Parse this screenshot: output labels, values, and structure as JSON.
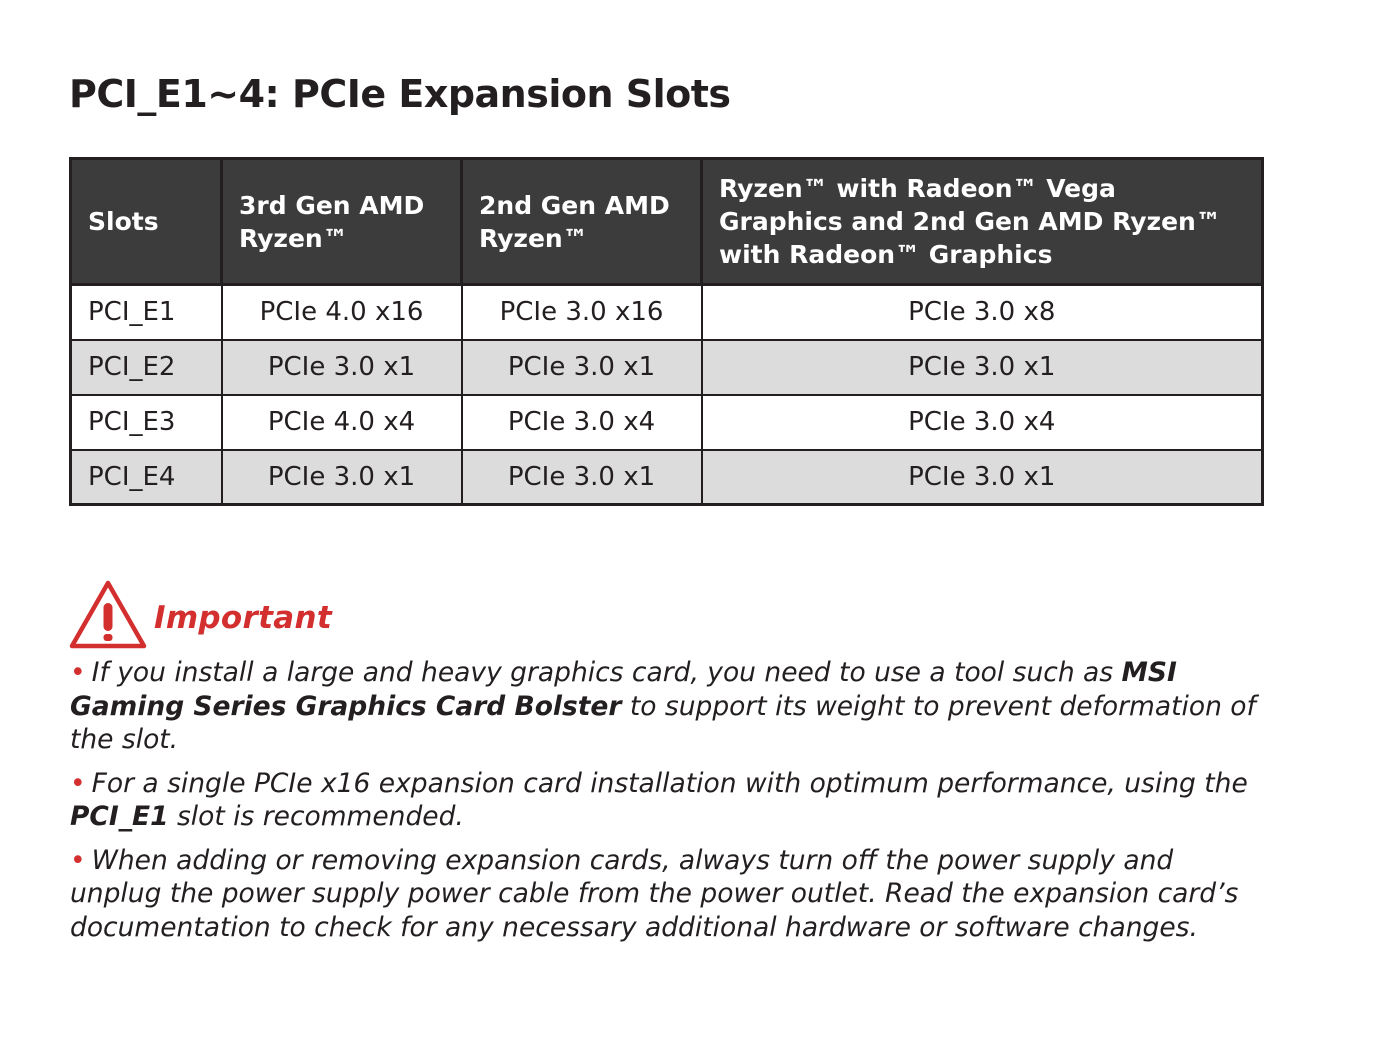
{
  "title": "PCI_E1~4: PCIe Expansion Slots",
  "table": {
    "headers": [
      "Slots",
      "3rd Gen AMD Ryzen™",
      "2nd Gen AMD Ryzen™",
      "Ryzen™ with Radeon™ Vega Graphics and 2nd Gen AMD Ryzen™ with Radeon™ Graphics"
    ],
    "rows": [
      [
        "PCI_E1",
        "PCIe 4.0 x16",
        "PCIe 3.0 x16",
        "PCIe 3.0 x8"
      ],
      [
        "PCI_E2",
        "PCIe 3.0 x1",
        "PCIe 3.0 x1",
        "PCIe 3.0 x1"
      ],
      [
        "PCI_E3",
        "PCIe 4.0 x4",
        "PCIe 3.0 x4",
        "PCIe 3.0 x4"
      ],
      [
        "PCI_E4",
        "PCIe 3.0 x1",
        "PCIe 3.0 x1",
        "PCIe 3.0 x1"
      ]
    ]
  },
  "important": {
    "label": "Important",
    "icon": "warning-triangle-icon",
    "accent_color": "#d32f2f",
    "bullet": "•",
    "notes": [
      {
        "t1": "If you install a large and heavy graphics card, you need to use a tool such as ",
        "b1": "MSI Gaming Series Graphics Card Bolster",
        "t2": " to support its weight to prevent deformation of the slot."
      },
      {
        "t1": "For a single PCIe x16 expansion card installation with optimum performance, using the ",
        "b1": "PCI_E1",
        "t2": " slot is recommended."
      },
      {
        "t1": "When adding or removing expansion cards, always turn off the power supply and unplug the power supply power cable from the power outlet. Read the expansion card’s documentation to check for any necessary additional hardware or software changes.",
        "b1": "",
        "t2": ""
      }
    ]
  }
}
